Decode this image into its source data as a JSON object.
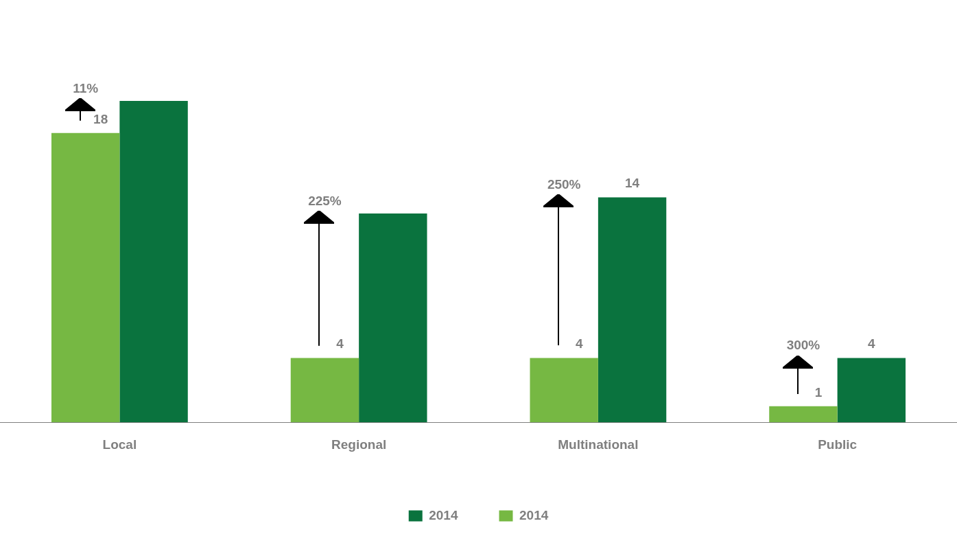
{
  "chart_data": {
    "type": "bar",
    "categories": [
      "Local",
      "Regional",
      "Multinational",
      "Public"
    ],
    "series": [
      {
        "name": "2014",
        "color": "#76b843",
        "values": [
          18,
          4,
          4,
          1
        ],
        "value_labels": [
          "18",
          "4",
          "4",
          "1"
        ]
      },
      {
        "name": "2014",
        "color": "#0a733e",
        "values": [
          20,
          13,
          14,
          4
        ],
        "value_labels": [
          null,
          null,
          "14",
          "4"
        ]
      }
    ],
    "tick_labels": "x",
    "grid": false,
    "legend": "bottom",
    "annotations": [
      "11%",
      "225%",
      "250%",
      "300%"
    ]
  }
}
